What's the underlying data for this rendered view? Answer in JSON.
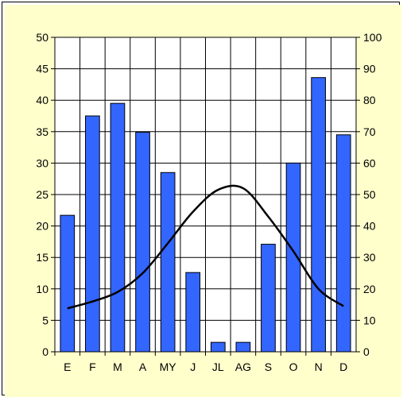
{
  "chart_data": {
    "type": "bar",
    "categories": [
      "E",
      "F",
      "M",
      "A",
      "MY",
      "J",
      "JL",
      "AG",
      "S",
      "O",
      "N",
      "D"
    ],
    "series": [
      {
        "type": "bar",
        "axis": "left",
        "color": "#3366ff",
        "values": [
          21.7,
          37.5,
          39.5,
          34.9,
          28.5,
          12.6,
          1.5,
          1.5,
          17.1,
          30.0,
          43.6,
          34.5
        ]
      },
      {
        "type": "line",
        "axis": "right",
        "color": "#000000",
        "values": [
          13.8,
          16.0,
          19.0,
          25.0,
          34.5,
          44.5,
          51.5,
          52.0,
          43.0,
          32.0,
          20.0,
          14.5
        ]
      }
    ],
    "left_axis": {
      "ylim": [
        0,
        50
      ],
      "ticks": [
        "0",
        "5",
        "10",
        "15",
        "20",
        "25",
        "30",
        "35",
        "40",
        "45",
        "50"
      ]
    },
    "right_axis": {
      "ylim": [
        0,
        100
      ],
      "ticks": [
        "0",
        "10",
        "20",
        "30",
        "40",
        "50",
        "60",
        "70",
        "80",
        "90",
        "100"
      ]
    },
    "grid": true,
    "title": "",
    "xlabel": "",
    "ylabel": "",
    "background_color": "#ffffcc",
    "plot_background_color": "#ffffff"
  }
}
